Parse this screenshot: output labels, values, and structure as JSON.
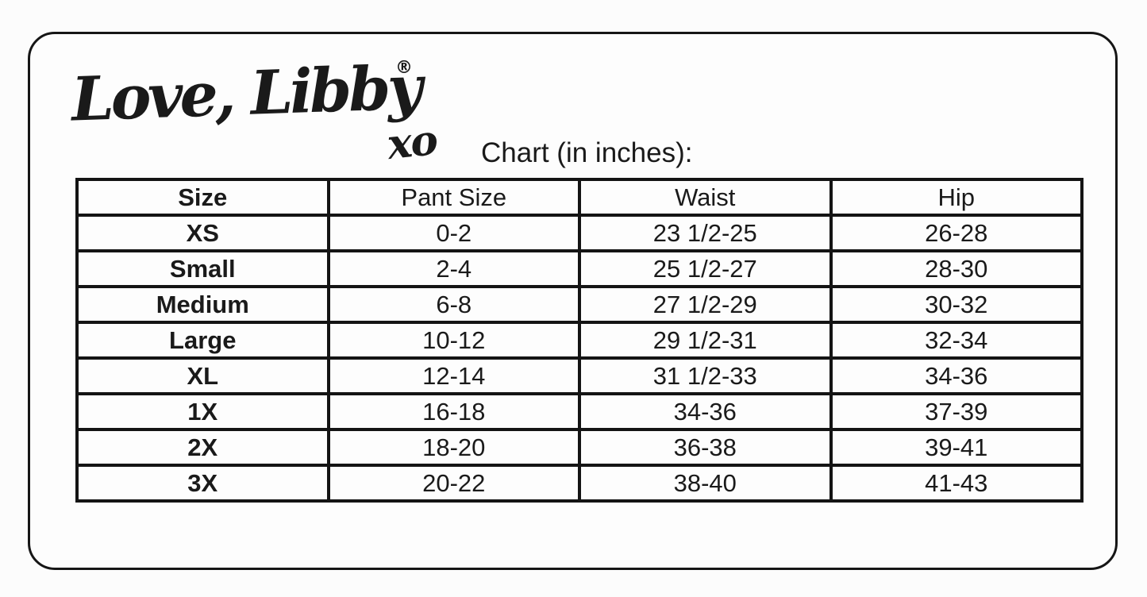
{
  "brand": {
    "name": "Love, Libby",
    "registered_mark": "®",
    "suffix": "xo"
  },
  "title": "Chart (in inches):",
  "chart_data": {
    "type": "table",
    "title": "Chart (in inches):",
    "columns": [
      "Size",
      "Pant Size",
      "Waist",
      "Hip"
    ],
    "rows": [
      [
        "XS",
        "0-2",
        "23 1/2-25",
        "26-28"
      ],
      [
        "Small",
        "2-4",
        "25 1/2-27",
        "28-30"
      ],
      [
        "Medium",
        "6-8",
        "27 1/2-29",
        "30-32"
      ],
      [
        "Large",
        "10-12",
        "29 1/2-31",
        "32-34"
      ],
      [
        "XL",
        "12-14",
        "31 1/2-33",
        "34-36"
      ],
      [
        "1X",
        "16-18",
        "34-36",
        "37-39"
      ],
      [
        "2X",
        "18-20",
        "36-38",
        "39-41"
      ],
      [
        "3X",
        "20-22",
        "38-40",
        "41-43"
      ]
    ],
    "layout": {
      "grid": true,
      "header_row": true,
      "units": "inches"
    }
  },
  "colors": {
    "background": "#fcfcfc",
    "card_background": "#fdfdfd",
    "line": "#141414",
    "text": "#1a1a1a"
  }
}
